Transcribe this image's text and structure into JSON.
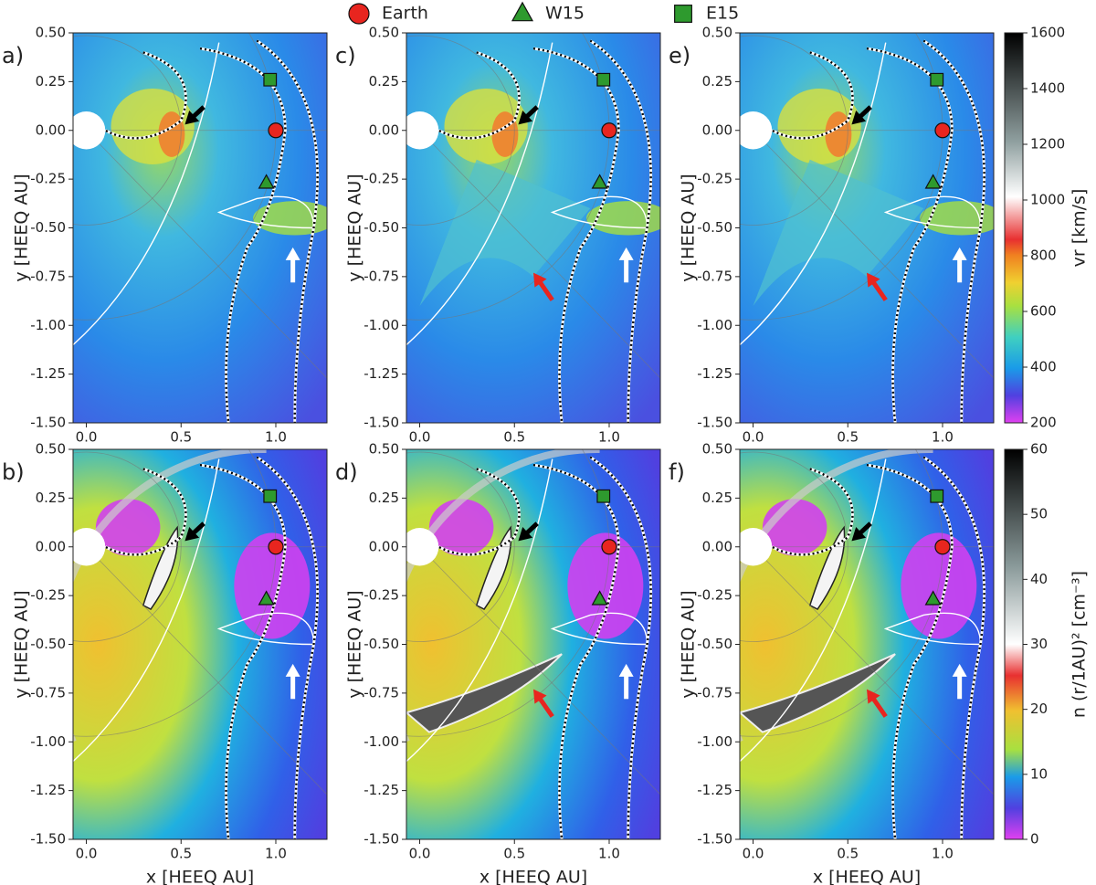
{
  "legend": {
    "names": [
      "Earth",
      "W15",
      "E15"
    ],
    "markers": [
      "circle",
      "triangle",
      "square"
    ],
    "colors": [
      "#e8251f",
      "#2e9a2e",
      "#2e9a2e"
    ],
    "x": [
      1.0,
      0.95,
      0.97
    ],
    "y": [
      0.0,
      -0.27,
      0.26
    ]
  },
  "axes": {
    "xlim": [
      -0.07,
      1.27
    ],
    "ylim": [
      -1.5,
      0.5
    ],
    "xticks": [
      {
        "value": 0,
        "label": "0.0"
      },
      {
        "value": 0.5,
        "label": "0.5"
      },
      {
        "value": 1,
        "label": "1.0"
      }
    ],
    "yticks": [
      {
        "value": 0.5,
        "label": "0.50"
      },
      {
        "value": 0.25,
        "label": "0.25"
      },
      {
        "value": 0,
        "label": "0.00"
      },
      {
        "value": -0.25,
        "label": "-0.25"
      },
      {
        "value": -0.5,
        "label": "-0.50"
      },
      {
        "value": -0.75,
        "label": "-0.75"
      },
      {
        "value": -1,
        "label": "-1.00"
      },
      {
        "value": -1.25,
        "label": "-1.25"
      },
      {
        "value": -1.5,
        "label": "-1.50"
      }
    ],
    "xlabel": "x [HEEQ AU]",
    "ylabel": "y [HEEQ AU]"
  },
  "panels": [
    {
      "type": "map",
      "label": "a)"
    },
    {
      "type": "map",
      "label": "b)"
    },
    {
      "type": "map",
      "label": "c)"
    },
    {
      "type": "map",
      "label": "d)"
    },
    {
      "type": "map",
      "label": "e)"
    },
    {
      "type": "map",
      "label": "f)"
    }
  ],
  "colorbars": [
    {
      "label": "vr  [km/s]",
      "lim": [
        200,
        1600
      ],
      "ticks": [
        200,
        400,
        600,
        800,
        1000,
        1200,
        1400,
        1600
      ]
    },
    {
      "label": "n (r/1AU)² [cm⁻³]",
      "lim": [
        0,
        60
      ],
      "ticks": [
        0,
        10,
        20,
        30,
        40,
        50,
        60
      ]
    }
  ]
}
